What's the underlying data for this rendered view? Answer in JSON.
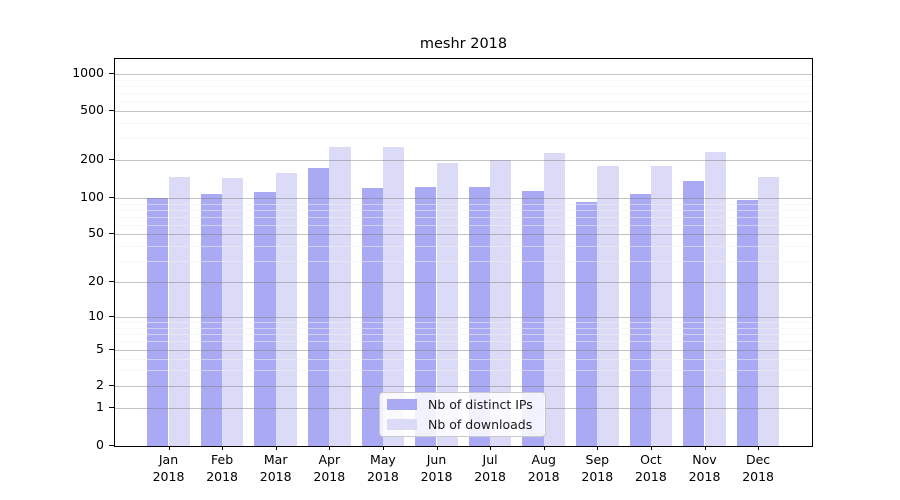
{
  "title": "meshr 2018",
  "chart_data": {
    "type": "bar",
    "title": "meshr 2018",
    "categories": [
      "Jan 2018",
      "Feb 2018",
      "Mar 2018",
      "Apr 2018",
      "May 2018",
      "Jun 2018",
      "Jul 2018",
      "Aug 2018",
      "Sep 2018",
      "Oct 2018",
      "Nov 2018",
      "Dec 2018"
    ],
    "series": [
      {
        "name": "Nb of distinct IPs",
        "color": "#a9a9f4",
        "values": [
          100,
          107,
          111,
          174,
          121,
          123,
          123,
          114,
          93,
          108,
          136,
          97
        ]
      },
      {
        "name": "Nb of downloads",
        "color": "#dbdbf8",
        "values": [
          147,
          143,
          157,
          256,
          256,
          190,
          200,
          227,
          179,
          179,
          234,
          147
        ]
      }
    ],
    "xlabel": "",
    "ylabel": "",
    "yscale": "symlog",
    "y_ticks": [
      0,
      1,
      2,
      5,
      10,
      20,
      50,
      100,
      200,
      500,
      1000
    ],
    "y_minor_gridlines": [
      3,
      4,
      6,
      7,
      8,
      9,
      30,
      40,
      60,
      70,
      80,
      90,
      300,
      400,
      600,
      700,
      800,
      900
    ],
    "ylim": [
      0,
      1300
    ],
    "grid": "horizontal major and minor, drawn above bars",
    "legend_position": "lower center inside plot"
  }
}
